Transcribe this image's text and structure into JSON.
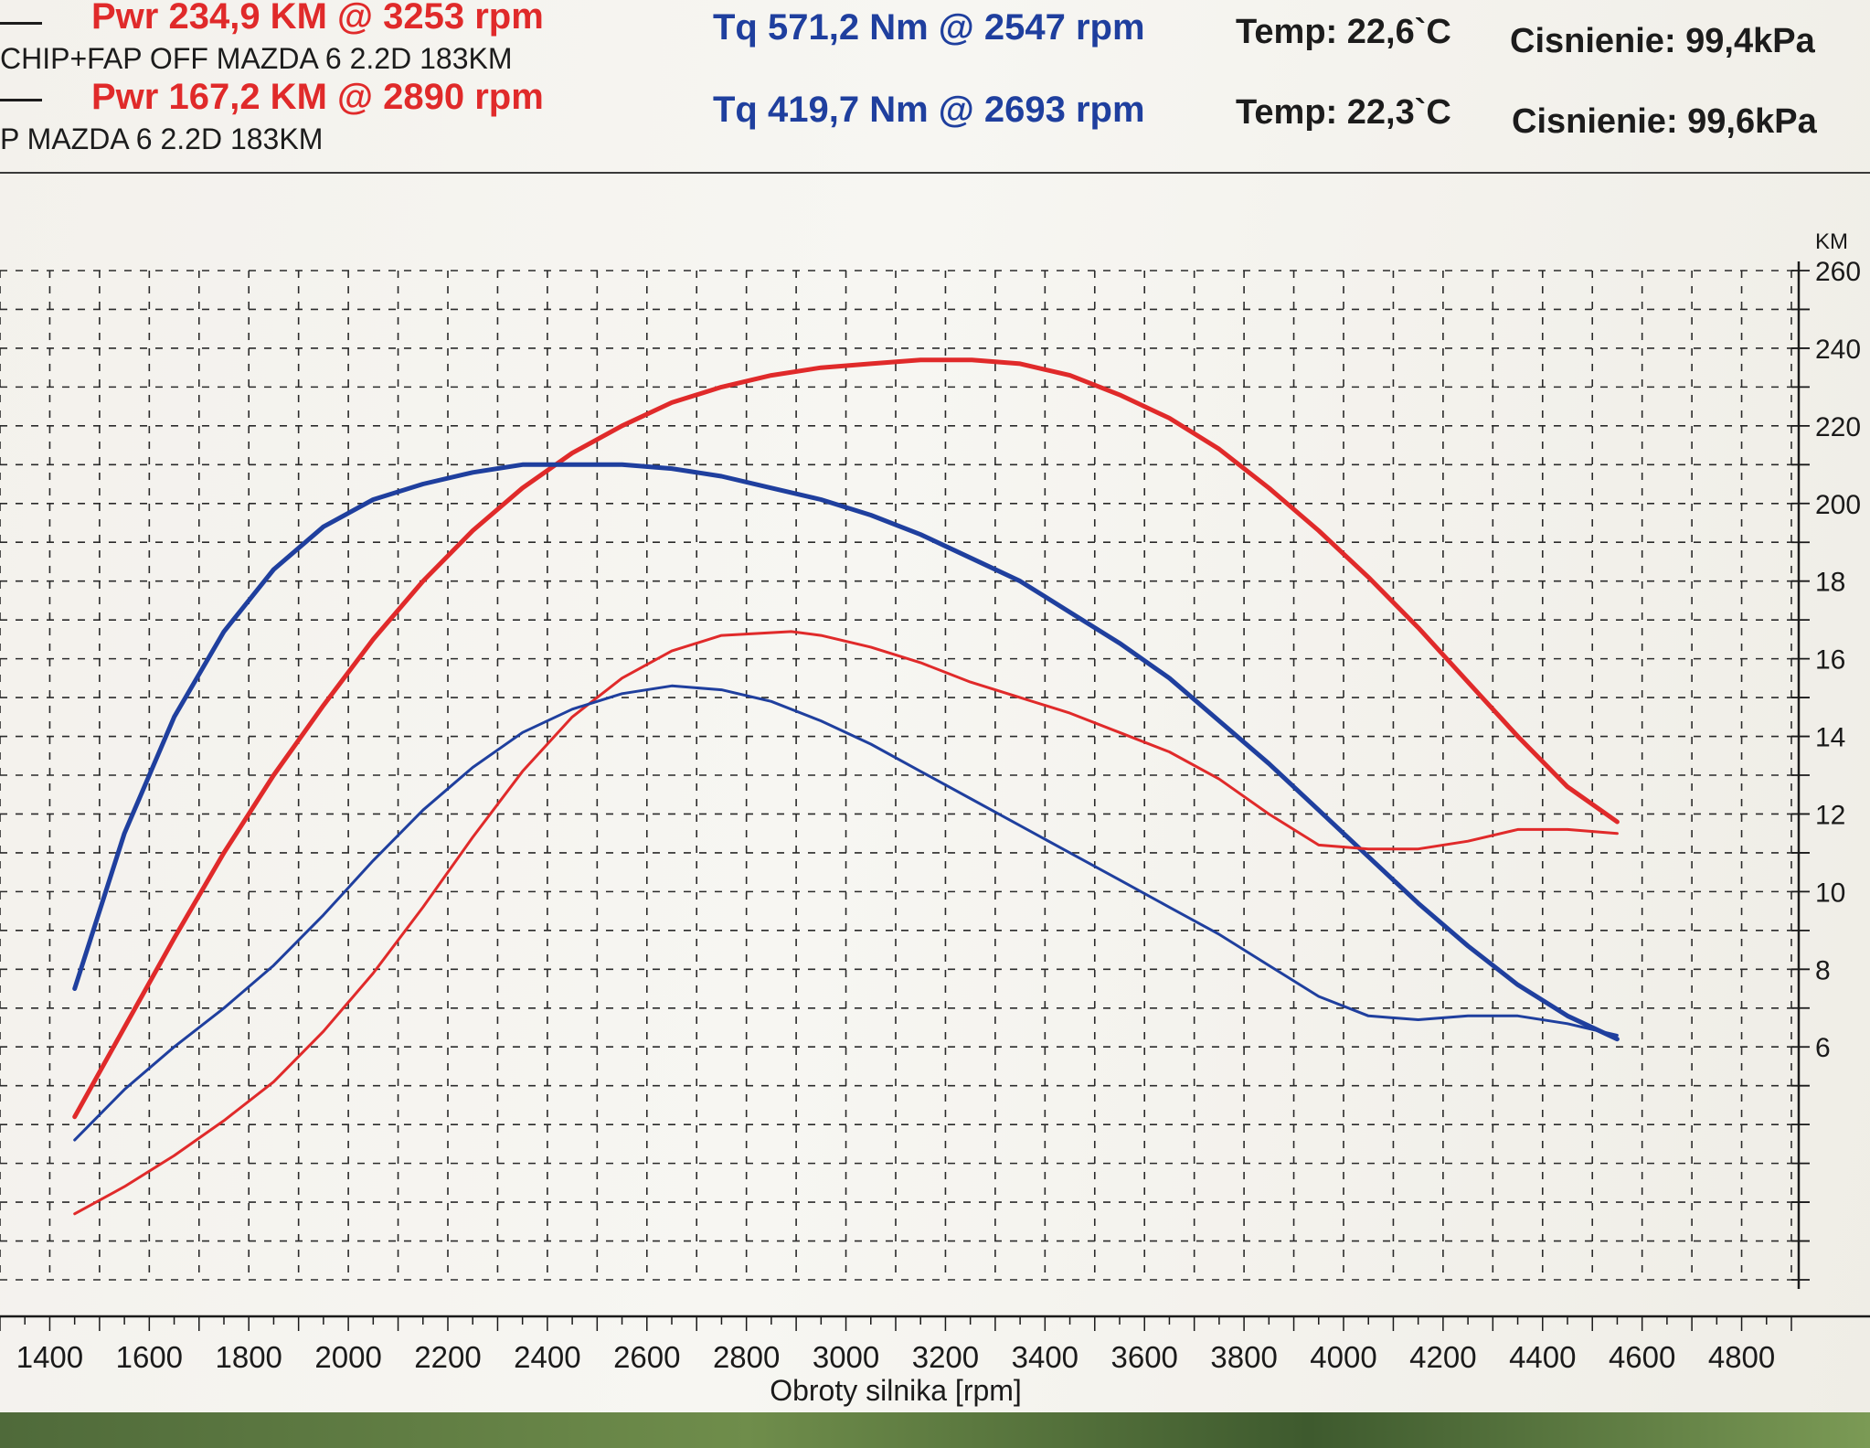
{
  "header": {
    "run1": {
      "power_text": "Pwr  234,9 KM @ 3253 rpm",
      "torque_text": "Tq 571,2 Nm @ 2547 rpm",
      "temp_text": "Temp: 22,6`C",
      "pressure_text": "Cisnienie: 99,4kPa",
      "description": "CHIP+FAP OFF MAZDA 6 2.2D 183KM",
      "line_marker": "—"
    },
    "run2": {
      "power_text": "Pwr  167,2 KM @ 2890 rpm",
      "torque_text": "Tq 419,7 Nm @ 2693 rpm",
      "temp_text": "Temp: 22,3`C",
      "pressure_text": "Cisnienie: 99,6kPa",
      "description": "P MAZDA 6 2.2D 183KM",
      "line_marker": "—"
    }
  },
  "colors": {
    "power": "#e02a2a",
    "torque": "#1f3f9e",
    "grid": "#2a2a2a"
  },
  "chart_data": {
    "type": "line",
    "xlabel": "Obroty silnika [rpm]",
    "ylabel": "KM",
    "xlim": [
      1300,
      4900
    ],
    "ylim": [
      0,
      260
    ],
    "x_ticks": [
      "1400",
      "1600",
      "1800",
      "2000",
      "2200",
      "2400",
      "2600",
      "2800",
      "3000",
      "3200",
      "3400",
      "3600",
      "3800",
      "4000",
      "4200",
      "4400",
      "4600",
      "4800"
    ],
    "y_ticks": [
      "260",
      "240",
      "220",
      "200",
      "18",
      "16",
      "14",
      "12",
      "10",
      "8",
      "6"
    ],
    "grid": true,
    "series": [
      {
        "color": "#e02a2a",
        "stroke": "thick",
        "points": [
          [
            1450,
            42
          ],
          [
            1550,
            65
          ],
          [
            1650,
            88
          ],
          [
            1750,
            110
          ],
          [
            1850,
            130
          ],
          [
            1950,
            148
          ],
          [
            2050,
            165
          ],
          [
            2150,
            180
          ],
          [
            2250,
            193
          ],
          [
            2350,
            204
          ],
          [
            2450,
            213
          ],
          [
            2550,
            220
          ],
          [
            2650,
            226
          ],
          [
            2750,
            230
          ],
          [
            2850,
            233
          ],
          [
            2950,
            235
          ],
          [
            3050,
            236
          ],
          [
            3150,
            237
          ],
          [
            3253,
            237
          ],
          [
            3350,
            236
          ],
          [
            3450,
            233
          ],
          [
            3550,
            228
          ],
          [
            3650,
            222
          ],
          [
            3750,
            214
          ],
          [
            3850,
            204
          ],
          [
            3950,
            193
          ],
          [
            4050,
            181
          ],
          [
            4150,
            168
          ],
          [
            4250,
            154
          ],
          [
            4350,
            140
          ],
          [
            4450,
            127
          ],
          [
            4550,
            118
          ]
        ]
      },
      {
        "color": "#1f3f9e",
        "stroke": "thick",
        "points": [
          [
            1450,
            75
          ],
          [
            1550,
            115
          ],
          [
            1650,
            145
          ],
          [
            1750,
            167
          ],
          [
            1850,
            183
          ],
          [
            1950,
            194
          ],
          [
            2050,
            201
          ],
          [
            2150,
            205
          ],
          [
            2250,
            208
          ],
          [
            2350,
            210
          ],
          [
            2450,
            210
          ],
          [
            2550,
            210
          ],
          [
            2650,
            209
          ],
          [
            2750,
            207
          ],
          [
            2850,
            204
          ],
          [
            2950,
            201
          ],
          [
            3050,
            197
          ],
          [
            3150,
            192
          ],
          [
            3250,
            186
          ],
          [
            3350,
            180
          ],
          [
            3450,
            172
          ],
          [
            3550,
            164
          ],
          [
            3650,
            155
          ],
          [
            3750,
            144
          ],
          [
            3850,
            133
          ],
          [
            3950,
            121
          ],
          [
            4050,
            109
          ],
          [
            4150,
            97
          ],
          [
            4250,
            86
          ],
          [
            4350,
            76
          ],
          [
            4450,
            68
          ],
          [
            4550,
            62
          ]
        ]
      },
      {
        "color": "#e02a2a",
        "stroke": "thin",
        "points": [
          [
            1450,
            17
          ],
          [
            1550,
            24
          ],
          [
            1650,
            32
          ],
          [
            1750,
            41
          ],
          [
            1850,
            51
          ],
          [
            1950,
            64
          ],
          [
            2050,
            79
          ],
          [
            2150,
            96
          ],
          [
            2250,
            114
          ],
          [
            2350,
            131
          ],
          [
            2450,
            145
          ],
          [
            2550,
            155
          ],
          [
            2650,
            162
          ],
          [
            2750,
            166
          ],
          [
            2890,
            167
          ],
          [
            2950,
            166
          ],
          [
            3050,
            163
          ],
          [
            3150,
            159
          ],
          [
            3250,
            154
          ],
          [
            3350,
            150
          ],
          [
            3450,
            146
          ],
          [
            3550,
            141
          ],
          [
            3650,
            136
          ],
          [
            3750,
            129
          ],
          [
            3850,
            120
          ],
          [
            3950,
            112
          ],
          [
            4050,
            111
          ],
          [
            4150,
            111
          ],
          [
            4250,
            113
          ],
          [
            4350,
            116
          ],
          [
            4450,
            116
          ],
          [
            4550,
            115
          ]
        ]
      },
      {
        "color": "#1f3f9e",
        "stroke": "thin",
        "points": [
          [
            1450,
            36
          ],
          [
            1550,
            49
          ],
          [
            1650,
            60
          ],
          [
            1750,
            70
          ],
          [
            1850,
            81
          ],
          [
            1950,
            94
          ],
          [
            2050,
            108
          ],
          [
            2150,
            121
          ],
          [
            2250,
            132
          ],
          [
            2350,
            141
          ],
          [
            2450,
            147
          ],
          [
            2550,
            151
          ],
          [
            2650,
            153
          ],
          [
            2750,
            152
          ],
          [
            2850,
            149
          ],
          [
            2950,
            144
          ],
          [
            3050,
            138
          ],
          [
            3150,
            131
          ],
          [
            3250,
            124
          ],
          [
            3350,
            117
          ],
          [
            3450,
            110
          ],
          [
            3550,
            103
          ],
          [
            3650,
            96
          ],
          [
            3750,
            89
          ],
          [
            3850,
            81
          ],
          [
            3950,
            73
          ],
          [
            4050,
            68
          ],
          [
            4150,
            67
          ],
          [
            4250,
            68
          ],
          [
            4350,
            68
          ],
          [
            4450,
            66
          ],
          [
            4550,
            63
          ]
        ]
      }
    ]
  }
}
